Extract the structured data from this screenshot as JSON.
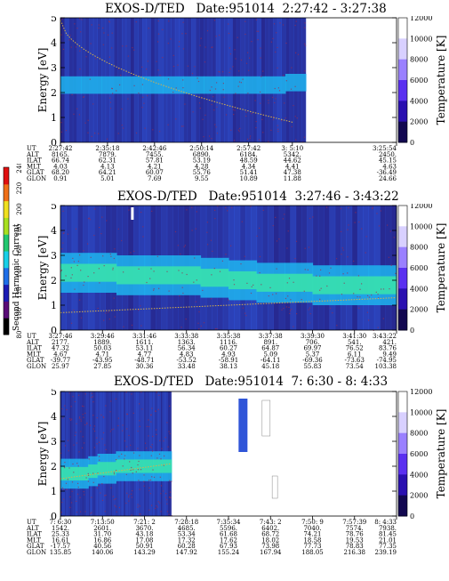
{
  "colors": {
    "bg_deep": "#241a78",
    "bg_mid": "#2f55d8",
    "band": "#1fb4ee",
    "band_core": "#3be8a8",
    "trace": "#d7b04a",
    "speckle": "#9b2b4f"
  },
  "colorbar": {
    "label": "Second Harmonic Current",
    "ticks": [
      "80",
      "100",
      "120",
      "140",
      "160",
      "180",
      "200",
      "220",
      "240"
    ],
    "colors": [
      "#000000",
      "#5a0c78",
      "#1c1cb4",
      "#1f6fe8",
      "#18d0e8",
      "#22c870",
      "#a8e020",
      "#f0e020",
      "#f07018",
      "#e01010"
    ]
  },
  "chart_data": [
    {
      "type": "heatmap",
      "title": "EXOS-D/TED   Date:951014  2:27:42 - 3:27:38",
      "ylabel": "Energy [eV]",
      "ylabel2": "Temperature [K]",
      "y_ticks": [
        "0",
        "1",
        "2",
        "3",
        "4",
        "5"
      ],
      "y2_ticks": [
        "0",
        "2000",
        "4000",
        "6000",
        "8000",
        "10000",
        "12000"
      ],
      "ylim": [
        0,
        5
      ],
      "y2lim": [
        0,
        12000
      ],
      "band": {
        "center": [
          2.3,
          2.3,
          2.3,
          2.3,
          2.3,
          2.3,
          2.3,
          2.3,
          2.3,
          2.3,
          2.3,
          2.4
        ],
        "width": 0.35
      },
      "data_end_fraction": 0.73,
      "row_labels": [
        "UT",
        "ALT",
        "ILAT",
        "MLT",
        "GLAT",
        "GLON"
      ],
      "columns": [
        [
          "2:27:42",
          "8165.",
          "66.74",
          "4.03",
          "68.20",
          "0.91"
        ],
        [
          "2:35:18",
          "7879.",
          "62.31",
          "4.13",
          "64.21",
          "5.01"
        ],
        [
          "2:42:46",
          "7455.",
          "57.81",
          "4.21",
          "60.07",
          "7.69"
        ],
        [
          "2:50:14",
          "6890.",
          "53.19",
          "4.28",
          "55.76",
          "9.55"
        ],
        [
          "2:57:42",
          "6184.",
          "48.59",
          "4.34",
          "51.41",
          "10.89"
        ],
        [
          "3: 5:10",
          "5342.",
          "44.62",
          "4.41",
          "47.38",
          "11.88"
        ],
        [
          "3:25:54",
          "2450.",
          "45.15",
          "4.63",
          "-36.49",
          "24.66"
        ]
      ]
    },
    {
      "type": "heatmap",
      "title": "EXOS-D/TED   Date:951014  3:27:46 - 3:43:22",
      "ylabel": "Energy [eV]",
      "ylabel2": "Temperature [K]",
      "y_ticks": [
        "0",
        "1",
        "2",
        "3",
        "4",
        "5"
      ],
      "y2_ticks": [
        "0",
        "2000",
        "4000",
        "6000",
        "8000",
        "10000",
        "12000"
      ],
      "ylim": [
        0,
        5
      ],
      "y2lim": [
        0,
        12000
      ],
      "band": {
        "center": [
          2.3,
          2.3,
          2.2,
          2.2,
          2.2,
          2.1,
          2.0,
          1.9,
          1.9,
          1.8,
          1.8,
          1.8
        ],
        "width": 0.8
      },
      "data_end_fraction": 1.0,
      "row_labels": [
        "UT",
        "ALT",
        "ILAT",
        "MLT",
        "GLAT",
        "GLON"
      ],
      "columns": [
        [
          "3:27:46",
          "2177.",
          "47.32",
          "4.67",
          "-39.77",
          "25.97"
        ],
        [
          "3:29:46",
          "1889.",
          "50.03",
          "4.71",
          "-43.95",
          "27.85"
        ],
        [
          "3:31:46",
          "1611.",
          "53.11",
          "4.77",
          "-48.71",
          "30.36"
        ],
        [
          "3:33:38",
          "1363.",
          "56.34",
          "4.83",
          "-53.52",
          "33.48"
        ],
        [
          "3:35:38",
          "1116.",
          "60.27",
          "4.93",
          "-58.91",
          "38.13"
        ],
        [
          "3:37:38",
          "891.",
          "64.87",
          "5.09",
          "-64.11",
          "45.18"
        ],
        [
          "3:39:30",
          "706.",
          "69.97",
          "5.37",
          "-69.36",
          "55.83"
        ],
        [
          "3:41:30",
          "541.",
          "76.52",
          "6.11",
          "-73.63",
          "73.54"
        ],
        [
          "3:43:22",
          "421.",
          "83.76",
          "9.49",
          "-74.95",
          "103.38"
        ]
      ]
    },
    {
      "type": "heatmap",
      "title": "EXOS-D/TED   Date:951014  7: 6:30 - 8: 4:33",
      "ylabel": "Energy [eV]",
      "ylabel2": "Temperature [K]",
      "y_ticks": [
        "0",
        "1",
        "2",
        "3",
        "4",
        "5"
      ],
      "y2_ticks": [
        "0",
        "2000",
        "4000",
        "6000",
        "8000",
        "10000",
        "12000"
      ],
      "ylim": [
        0,
        5
      ],
      "y2lim": [
        0,
        12000
      ],
      "band": {
        "center": [
          1.7,
          1.7,
          1.7,
          1.8,
          1.9,
          1.9,
          2.0,
          2.0,
          2.0,
          2.0,
          2.0,
          2.0
        ],
        "width": 0.6
      },
      "data_end_fraction": 0.33,
      "row_labels": [
        "UT",
        "ALT",
        "ILAT",
        "MLT",
        "GLAT",
        "GLON"
      ],
      "columns": [
        [
          "7: 6:30",
          "1542.",
          "25.33",
          "16.61",
          "-17.57",
          "135.85"
        ],
        [
          "7:13:50",
          "2601.",
          "31.70",
          "16.86",
          "40.56",
          "140.06"
        ],
        [
          "7:21: 2",
          "3670.",
          "43.18",
          "17.08",
          "50.91",
          "143.29"
        ],
        [
          "7:28:18",
          "4685.",
          "53.34",
          "17.32",
          "60.28",
          "147.92"
        ],
        [
          "7:35:34",
          "5596.",
          "61.68",
          "17.62",
          "67.93",
          "155.24"
        ],
        [
          "7:43: 2",
          "6402.",
          "68.72",
          "18.02",
          "73.98",
          "167.94"
        ],
        [
          "7:50: 9",
          "7040.",
          "74.21",
          "18.58",
          "77.73",
          "188.05"
        ],
        [
          "7:57:39",
          "7574.",
          "78.76",
          "19.53",
          "78.83",
          "216.38"
        ],
        [
          "8: 4:33",
          "7938.",
          "81.45",
          "21.01",
          "77.35",
          "239.19"
        ]
      ]
    }
  ]
}
